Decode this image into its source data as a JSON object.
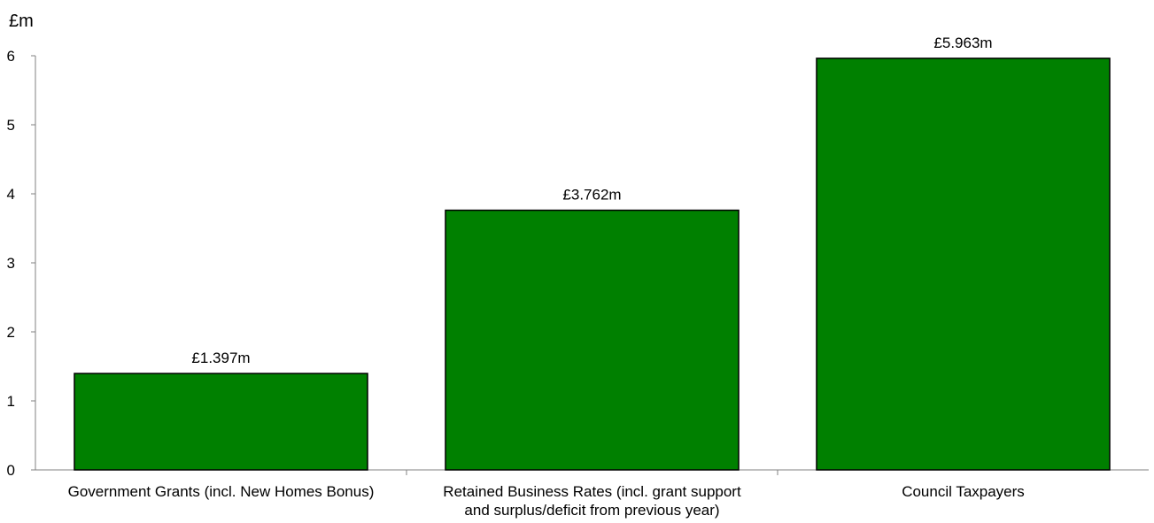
{
  "chart_data": {
    "type": "bar",
    "ylabel": "£m",
    "categories": [
      {
        "lines": [
          "Government Grants (incl. New Homes Bonus)"
        ]
      },
      {
        "lines": [
          "Retained Business Rates (incl. grant support",
          "and surplus/deficit  from previous year)"
        ]
      },
      {
        "lines": [
          "Council Taxpayers"
        ]
      }
    ],
    "values": [
      1.397,
      3.762,
      5.963
    ],
    "data_labels": [
      "£1.397m",
      "£3.762m",
      "£5.963m"
    ],
    "yticks": [
      "0",
      "1",
      "2",
      "3",
      "4",
      "5",
      "6"
    ],
    "ylim": [
      0,
      6
    ],
    "grid": false,
    "legend": "none",
    "colors": {
      "bar_fill": "#008000",
      "bar_stroke": "#000000",
      "axis": "#808080"
    }
  }
}
